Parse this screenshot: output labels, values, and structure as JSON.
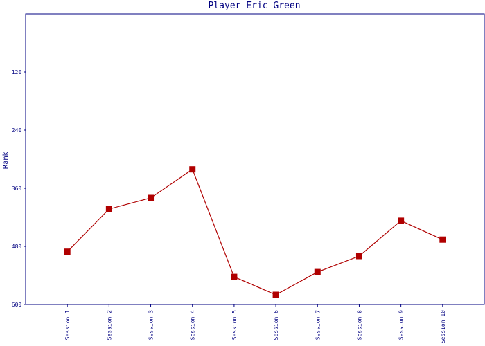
{
  "chart_data": {
    "type": "line",
    "title": "Player Eric Green",
    "y_label": "Rank",
    "categories": [
      "Session 1",
      "Session 2",
      "Session 3",
      "Session 4",
      "Session 5",
      "Session 6",
      "Session 7",
      "Session 8",
      "Session 9",
      "Session 10"
    ],
    "series": [
      {
        "name": "Rank",
        "color": "#b00000",
        "values": [
          491,
          403,
          380,
          321,
          543,
          580,
          533,
          500,
          427,
          466
        ]
      }
    ],
    "ylim": [
      0,
      600
    ],
    "yticks": [
      120,
      240,
      360,
      480,
      600
    ],
    "inverted": true,
    "grid": false
  }
}
